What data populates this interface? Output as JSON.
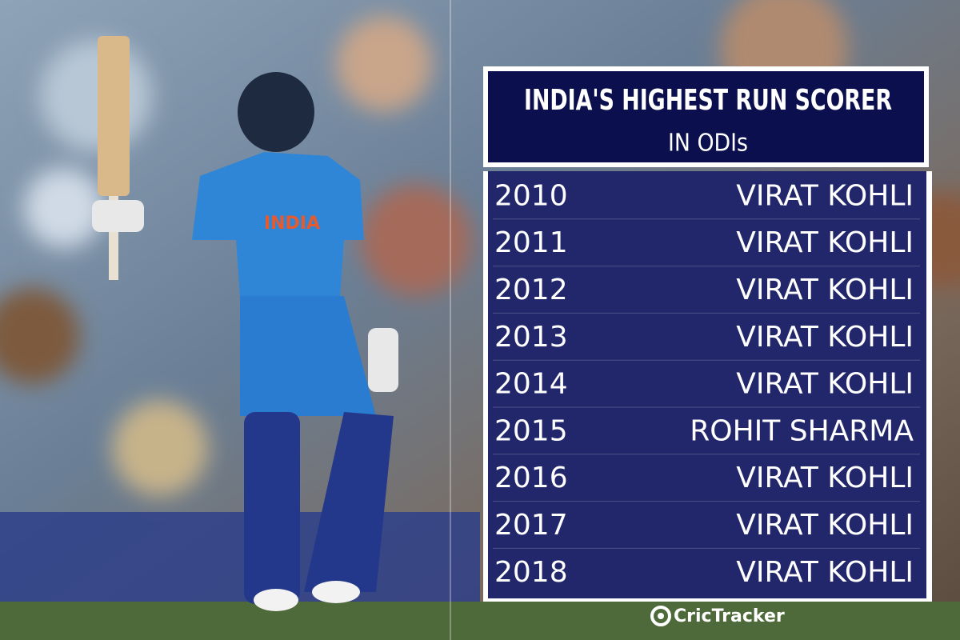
{
  "header": {
    "title": "INDIA'S HIGHEST RUN SCORER",
    "subtitle": "IN ODIs"
  },
  "table": {
    "rows": [
      [
        "2010",
        "VIRAT KOHLI"
      ],
      [
        "2011",
        "VIRAT KOHLI"
      ],
      [
        "2012",
        "VIRAT KOHLI"
      ],
      [
        "2013",
        "VIRAT KOHLI"
      ],
      [
        "2014",
        "VIRAT KOHLI"
      ],
      [
        "2015",
        "ROHIT SHARMA"
      ],
      [
        "2016",
        "VIRAT KOHLI"
      ],
      [
        "2017",
        "VIRAT KOHLI"
      ],
      [
        "2018",
        "VIRAT KOHLI"
      ]
    ]
  },
  "brand": "CricTracker"
}
